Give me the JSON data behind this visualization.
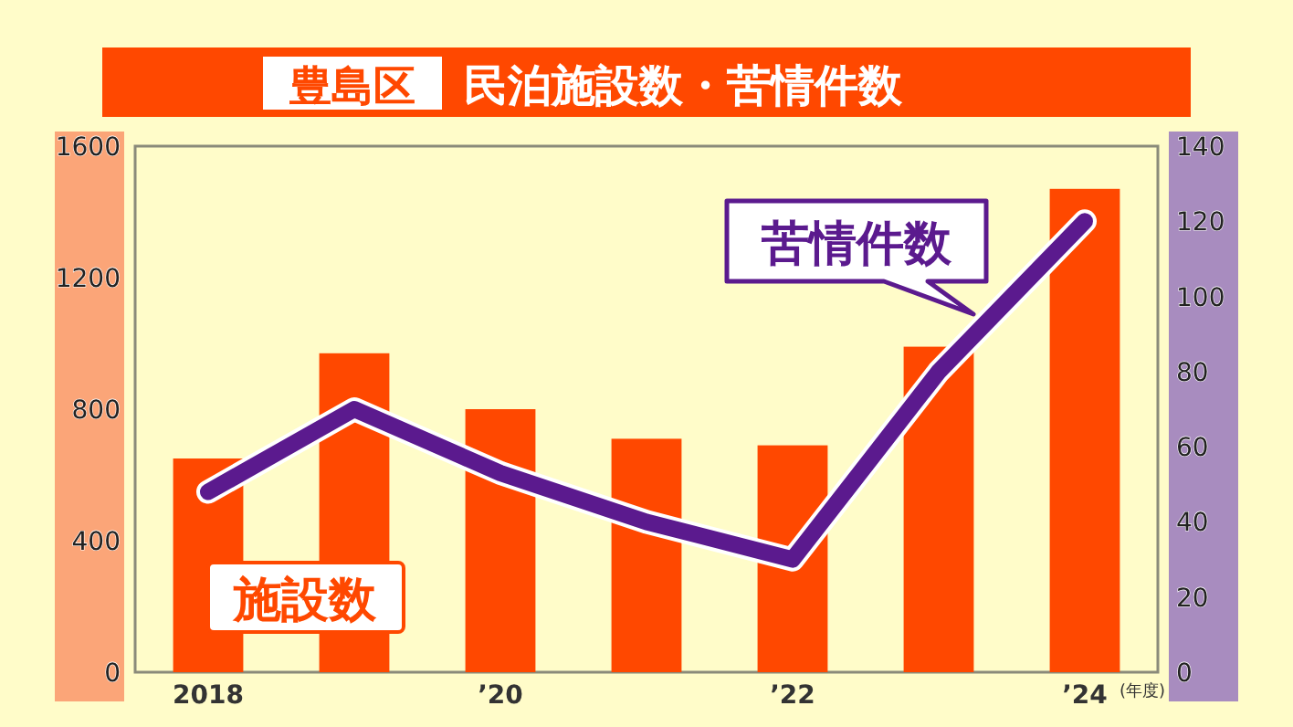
{
  "chart_data": {
    "type": "bar",
    "title": "豊島区",
    "subtitle": "民泊施設数・苦情件数",
    "xlabel": "(年度)",
    "categories": [
      "2018",
      null,
      "’20",
      null,
      "’22",
      null,
      "’24"
    ],
    "series": [
      {
        "name": "施設数",
        "color": "#ff4800",
        "values": [
          650,
          970,
          800,
          710,
          690,
          990,
          1470
        ]
      },
      {
        "name": "苦情件数",
        "type": "line",
        "axis": "y2",
        "color": "#5b1a8e",
        "values": [
          48,
          70,
          53,
          40,
          30,
          80,
          120
        ]
      }
    ],
    "ylim": [
      0,
      1600
    ],
    "yticks": [
      0,
      400,
      800,
      1200,
      1600
    ],
    "y2lim": [
      0,
      140
    ],
    "y2ticks": [
      0,
      20,
      40,
      60,
      80,
      100,
      120,
      140
    ],
    "grid": false,
    "marker": "none",
    "line_style": "solid"
  }
}
